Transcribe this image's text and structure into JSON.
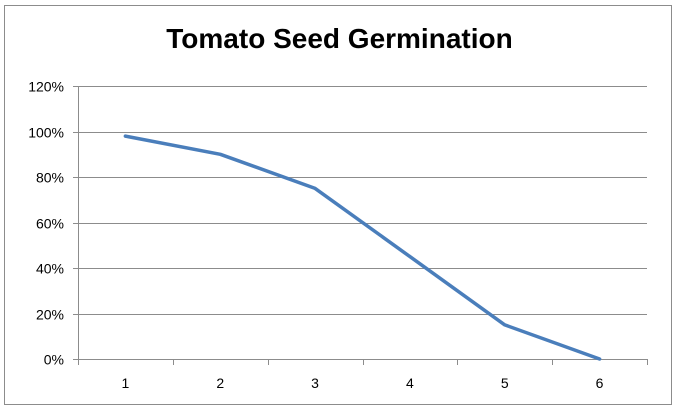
{
  "chart_data": {
    "type": "line",
    "title": "Tomato Seed Germination",
    "categories": [
      "1",
      "2",
      "3",
      "4",
      "5",
      "6"
    ],
    "series": [
      {
        "values": [
          0.98,
          0.9,
          0.75,
          0.45,
          0.15,
          0.0
        ],
        "color": "#4a7ebb"
      }
    ],
    "ylim": [
      0,
      1.2
    ],
    "yticks": [
      0,
      0.2,
      0.4,
      0.6,
      0.8,
      1.0,
      1.2
    ],
    "ytick_labels": [
      "0%",
      "20%",
      "40%",
      "60%",
      "80%",
      "100%",
      "120%"
    ],
    "grid": true,
    "gridline_color": "#8c8c8c",
    "axis_color": "#8c8c8c"
  }
}
